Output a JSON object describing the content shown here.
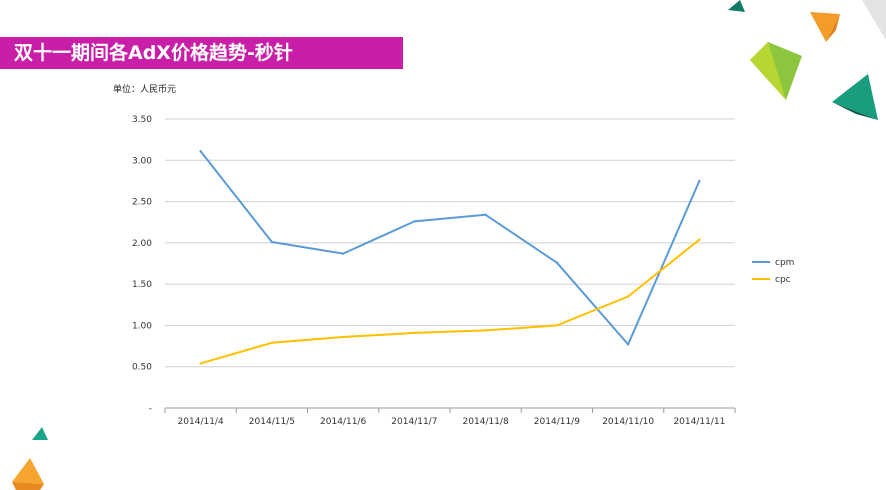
{
  "slide": {
    "title": "双十一期间各AdX价格趋势-秒针",
    "unit_label": "单位：人民币元"
  },
  "chart_data": {
    "type": "line",
    "title": "",
    "xlabel": "",
    "ylabel": "",
    "categories": [
      "2014/11/4",
      "2014/11/5",
      "2014/11/6",
      "2014/11/7",
      "2014/11/8",
      "2014/11/9",
      "2014/11/10",
      "2014/11/11"
    ],
    "y_ticks": [
      "-",
      "0.50",
      "1.00",
      "1.50",
      "2.00",
      "2.50",
      "3.00",
      "3.50"
    ],
    "ylim": [
      0,
      3.5
    ],
    "grid": true,
    "legend_position": "right",
    "series": [
      {
        "name": "cpm",
        "color": "#5b9bd5",
        "values": [
          3.11,
          2.01,
          1.87,
          2.26,
          2.34,
          1.76,
          0.77,
          2.75
        ]
      },
      {
        "name": "cpc",
        "color": "#ffc000",
        "values": [
          0.54,
          0.79,
          0.86,
          0.91,
          0.94,
          1.0,
          1.35,
          2.04
        ]
      }
    ]
  },
  "decor": {
    "shapes": [
      "triangle-teal",
      "triangle-orange",
      "triangle-green",
      "triangle-dark-teal",
      "triangle-gray"
    ]
  }
}
